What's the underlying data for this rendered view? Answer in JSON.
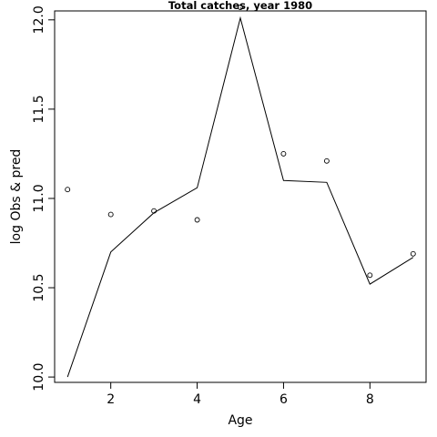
{
  "chart_data": {
    "type": "line",
    "title": "Total catches, year 1980",
    "xlabel": "Age",
    "ylabel": "log Obs & pred",
    "xlim": [
      0.7,
      9.3
    ],
    "ylim": [
      9.97,
      12.05
    ],
    "x_ticks": [
      2,
      4,
      6,
      8
    ],
    "x_tick_labels": [
      "2",
      "4",
      "6",
      "8"
    ],
    "y_ticks": [
      10.0,
      10.5,
      11.0,
      11.5,
      12.0
    ],
    "y_tick_labels": [
      "10.0",
      "10.5",
      "11.0",
      "11.5",
      "12.0"
    ],
    "x": [
      1,
      2,
      3,
      4,
      5,
      6,
      7,
      8,
      9
    ],
    "series": [
      {
        "style": "points",
        "values": [
          11.05,
          10.91,
          10.93,
          10.88,
          12.07,
          11.25,
          11.21,
          10.57,
          10.69
        ]
      },
      {
        "style": "line",
        "values": [
          10.0,
          10.7,
          10.92,
          11.06,
          12.01,
          11.1,
          11.09,
          10.52,
          10.67
        ]
      }
    ],
    "grid": false,
    "legend": "none",
    "colors": {
      "line": "#000000",
      "points": "#000000",
      "background": "#ffffff"
    }
  }
}
